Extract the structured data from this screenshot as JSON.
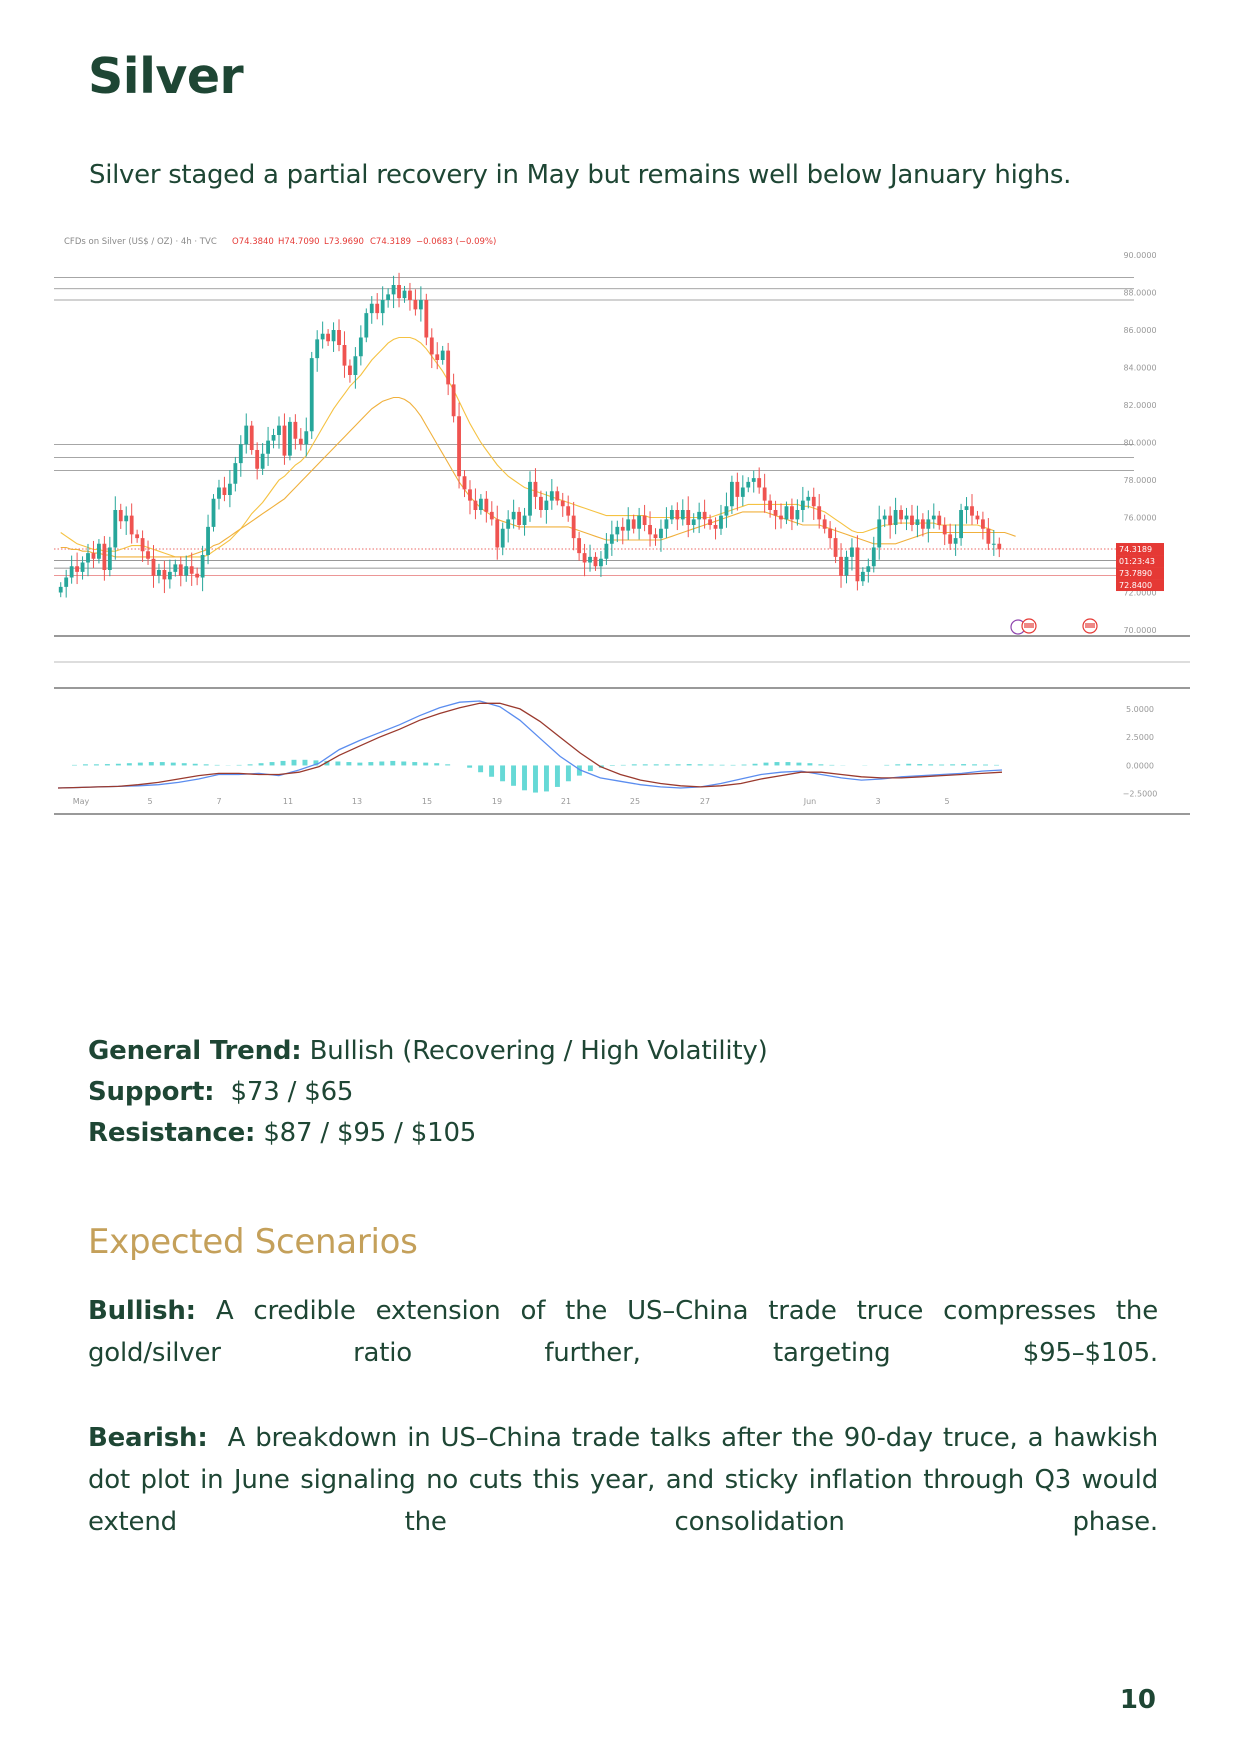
{
  "page": {
    "title": "Silver",
    "subtitle": "Silver staged a partial recovery in May but remains well below January highs.",
    "page_number": "10"
  },
  "summary": {
    "trend_label": "General Trend:",
    "trend_value": "Bullish (Recovering / High Volatility)",
    "support_label": "Support:",
    "support_value": "$73 / $65",
    "resistance_label": "Resistance:",
    "resistance_value": "$87 / $95 / $105"
  },
  "scenarios": {
    "heading": "Expected Scenarios",
    "bullish_label": "Bullish:",
    "bullish_text": "A credible extension of the US–China trade truce compresses the gold/silver ratio further, targeting $95–$105.",
    "bearish_label": "Bearish:",
    "bearish_text": "A breakdown in US–China trade talks after the 90-day truce, a hawkish dot plot in June signaling no cuts this year, and sticky inflation through Q3 would extend the consolidation phase."
  },
  "colors": {
    "text_green": "#1e4634",
    "accent_gold": "#c4a05a",
    "candle_up": "#26a69a",
    "candle_down": "#ef5350",
    "ma_fast": "#f5c242",
    "ma_slow": "#f0b03c",
    "macd_line": "#5b8def",
    "signal_line": "#9a3a2e",
    "histogram": "#66d9d6"
  },
  "chart_data": {
    "type": "candlestick",
    "header": {
      "symbol": "CFDs on Silver (US$ / OZ) · 4h · TVC",
      "open": "O74.3840",
      "high": "H74.7090",
      "low": "L73.9690",
      "close": "C74.3189",
      "change": "−0.0683 (−0.09%)"
    },
    "y_ticks": [
      "90.0000",
      "88.0000",
      "86.0000",
      "84.0000",
      "82.0000",
      "80.0000",
      "78.0000",
      "76.0000",
      "74.0000",
      "72.0000",
      "70.0000"
    ],
    "ylim": [
      70,
      90
    ],
    "x_ticks": [
      "May",
      "5",
      "7",
      "11",
      "13",
      "15",
      "19",
      "21",
      "25",
      "27",
      "Jun",
      "3",
      "5"
    ],
    "price_tags": [
      "74.3189",
      "01:23:43",
      "73.7890",
      "72.8400"
    ],
    "horizontal_levels": [
      88.8,
      88.2,
      87.6,
      79.9,
      79.2,
      78.5,
      73.7,
      73.3,
      72.9
    ],
    "current_price": 74.3189,
    "candle_closes": [
      72.3,
      72.8,
      73.4,
      73.1,
      73.6,
      74.1,
      73.8,
      74.6,
      73.2,
      74.4,
      76.4,
      75.8,
      76.1,
      75.1,
      74.9,
      74.2,
      73.8,
      72.9,
      73.2,
      72.7,
      73.1,
      73.5,
      72.9,
      73.4,
      73.0,
      72.8,
      74.0,
      75.5,
      77.0,
      77.6,
      77.2,
      77.8,
      78.9,
      79.9,
      80.9,
      79.6,
      78.6,
      79.4,
      80.1,
      80.4,
      80.9,
      79.3,
      81.1,
      80.2,
      79.9,
      80.6,
      84.5,
      85.5,
      85.8,
      85.4,
      86.0,
      85.2,
      84.1,
      83.6,
      84.6,
      85.6,
      86.9,
      87.4,
      86.9,
      87.6,
      87.9,
      88.4,
      87.7,
      88.1,
      87.6,
      87.1,
      87.6,
      85.6,
      84.7,
      84.4,
      84.9,
      83.1,
      81.4,
      78.2,
      77.5,
      76.9,
      76.4,
      77.0,
      76.3,
      75.9,
      74.4,
      75.4,
      75.9,
      76.3,
      75.6,
      76.1,
      77.9,
      77.1,
      76.4,
      76.9,
      77.4,
      76.9,
      76.6,
      76.1,
      74.9,
      74.1,
      73.6,
      73.9,
      73.4,
      73.8,
      74.6,
      75.1,
      75.5,
      75.3,
      75.9,
      75.4,
      76.1,
      75.6,
      75.1,
      74.9,
      75.4,
      75.9,
      76.4,
      75.9,
      76.4,
      75.6,
      75.9,
      76.3,
      75.9,
      75.6,
      75.4,
      76.1,
      76.6,
      77.9,
      77.1,
      77.6,
      77.9,
      78.1,
      77.6,
      76.9,
      76.4,
      76.1,
      75.9,
      76.6,
      75.9,
      76.4,
      76.9,
      77.1,
      76.6,
      75.9,
      75.4,
      74.9,
      73.9,
      72.9,
      73.9,
      74.4,
      72.6,
      73.1,
      73.4,
      74.4,
      75.9,
      76.1,
      75.6,
      76.4,
      75.9,
      76.1,
      75.6,
      75.9,
      75.4,
      75.9,
      76.1,
      75.6,
      75.1,
      74.6,
      74.9,
      76.4,
      76.6,
      76.1,
      75.9,
      75.4,
      74.6,
      74.6,
      74.3
    ],
    "ma_fast": [
      75.2,
      75.0,
      74.8,
      74.6,
      74.5,
      74.4,
      74.3,
      74.3,
      74.2,
      74.2,
      74.2,
      74.3,
      74.4,
      74.5,
      74.5,
      74.5,
      74.4,
      74.3,
      74.2,
      74.1,
      74.0,
      73.9,
      73.9,
      73.9,
      73.9,
      73.9,
      73.9,
      74.0,
      74.2,
      74.4,
      74.6,
      74.8,
      75.1,
      75.4,
      75.8,
      76.2,
      76.5,
      76.8,
      77.2,
      77.6,
      78.0,
      78.2,
      78.5,
      78.8,
      79.0,
      79.3,
      79.8,
      80.3,
      80.8,
      81.3,
      81.8,
      82.2,
      82.6,
      83.0,
      83.3,
      83.6,
      84.0,
      84.4,
      84.7,
      85.0,
      85.3,
      85.5,
      85.6,
      85.6,
      85.6,
      85.5,
      85.3,
      85.0,
      84.6,
      84.2,
      83.8,
      83.3,
      82.8,
      82.2,
      81.6,
      81.0,
      80.5,
      80.0,
      79.6,
      79.2,
      78.8,
      78.5,
      78.2,
      78.0,
      77.8,
      77.6,
      77.5,
      77.4,
      77.3,
      77.2,
      77.1,
      77.0,
      76.9,
      76.8,
      76.7,
      76.6,
      76.5,
      76.4,
      76.3,
      76.2,
      76.1,
      76.1,
      76.1,
      76.1,
      76.1,
      76.1,
      76.1,
      76.1,
      76.0,
      76.0,
      76.0,
      76.0,
      76.0,
      76.0,
      76.0,
      76.0,
      76.0,
      76.0,
      76.0,
      76.0,
      76.1,
      76.2,
      76.3,
      76.4,
      76.5,
      76.6,
      76.7,
      76.7,
      76.7,
      76.7,
      76.7,
      76.7,
      76.7,
      76.7,
      76.7,
      76.7,
      76.6,
      76.6,
      76.5,
      76.4,
      76.3,
      76.1,
      75.9,
      75.7,
      75.5,
      75.3,
      75.2,
      75.2,
      75.3,
      75.4,
      75.5,
      75.6,
      75.6,
      75.7,
      75.7,
      75.7,
      75.7,
      75.7,
      75.7,
      75.7,
      75.7,
      75.6,
      75.6,
      75.6,
      75.6,
      75.6,
      75.6,
      75.6,
      75.6,
      75.5,
      75.4,
      75.3
    ],
    "ma_slow": [
      74.4,
      74.4,
      74.3,
      74.3,
      74.2,
      74.2,
      74.1,
      74.1,
      74.0,
      74.0,
      73.9,
      73.9,
      73.9,
      73.9,
      73.9,
      73.9,
      73.9,
      73.9,
      73.9,
      73.9,
      73.9,
      73.9,
      73.9,
      73.9,
      74.0,
      74.1,
      74.2,
      74.3,
      74.5,
      74.6,
      74.8,
      75.0,
      75.2,
      75.4,
      75.6,
      75.8,
      76.0,
      76.2,
      76.4,
      76.6,
      76.8,
      77.0,
      77.3,
      77.6,
      77.9,
      78.2,
      78.5,
      78.8,
      79.1,
      79.4,
      79.7,
      80.0,
      80.3,
      80.6,
      80.9,
      81.2,
      81.5,
      81.8,
      82.0,
      82.2,
      82.3,
      82.4,
      82.4,
      82.3,
      82.1,
      81.8,
      81.4,
      80.9,
      80.4,
      79.9,
      79.4,
      78.9,
      78.4,
      77.9,
      77.5,
      77.1,
      76.8,
      76.5,
      76.3,
      76.1,
      75.9,
      75.8,
      75.7,
      75.6,
      75.5,
      75.5,
      75.5,
      75.5,
      75.5,
      75.5,
      75.5,
      75.5,
      75.5,
      75.5,
      75.4,
      75.3,
      75.2,
      75.1,
      75.0,
      74.9,
      74.8,
      74.8,
      74.8,
      74.8,
      74.8,
      74.8,
      74.8,
      74.8,
      74.8,
      74.8,
      74.8,
      74.9,
      75.0,
      75.1,
      75.2,
      75.3,
      75.4,
      75.5,
      75.6,
      75.7,
      75.8,
      75.9,
      76.0,
      76.1,
      76.2,
      76.3,
      76.3,
      76.3,
      76.3,
      76.3,
      76.2,
      76.1,
      76.0,
      75.9,
      75.8,
      75.7,
      75.6,
      75.6,
      75.6,
      75.6,
      75.5,
      75.4,
      75.3,
      75.2,
      75.1,
      75.0,
      74.9,
      74.8,
      74.7,
      74.6,
      74.6,
      74.6,
      74.6,
      74.6,
      74.7,
      74.8,
      74.9,
      75.0,
      75.1,
      75.2,
      75.2,
      75.2,
      75.2,
      75.2,
      75.2,
      75.2,
      75.2,
      75.2,
      75.2,
      75.2,
      75.2,
      75.2,
      75.2,
      75.2,
      75.1,
      75.0
    ],
    "macd": {
      "y_ticks": [
        "5.0000",
        "2.5000",
        "0.0000",
        "−2.5000"
      ],
      "ylim": [
        -3.5,
        6.5
      ],
      "macd": [
        -2.0,
        -1.95,
        -1.9,
        -1.85,
        -1.8,
        -1.7,
        -1.5,
        -1.2,
        -0.8,
        -0.8,
        -0.7,
        -0.9,
        -0.4,
        0.2,
        1.4,
        2.2,
        2.9,
        3.6,
        4.4,
        5.1,
        5.6,
        5.7,
        5.2,
        4.0,
        2.4,
        0.8,
        -0.4,
        -1.1,
        -1.4,
        -1.7,
        -1.9,
        -2.0,
        -1.9,
        -1.6,
        -1.2,
        -0.8,
        -0.6,
        -0.5,
        -0.8,
        -1.1,
        -1.3,
        -1.2,
        -1.0,
        -0.9,
        -0.8,
        -0.7,
        -0.5,
        -0.4
      ],
      "signal": [
        -2.0,
        -1.95,
        -1.9,
        -1.85,
        -1.7,
        -1.5,
        -1.2,
        -0.9,
        -0.7,
        -0.7,
        -0.8,
        -0.8,
        -0.6,
        -0.1,
        0.9,
        1.7,
        2.5,
        3.2,
        4.0,
        4.6,
        5.1,
        5.5,
        5.5,
        5.0,
        3.9,
        2.5,
        1.1,
        -0.1,
        -0.8,
        -1.3,
        -1.6,
        -1.8,
        -1.9,
        -1.8,
        -1.6,
        -1.2,
        -0.9,
        -0.6,
        -0.6,
        -0.8,
        -1.0,
        -1.1,
        -1.1,
        -1.0,
        -0.9,
        -0.8,
        -0.7,
        -0.6
      ],
      "histogram": [
        0.0,
        0.05,
        0.1,
        0.1,
        0.12,
        0.15,
        0.2,
        0.25,
        0.3,
        0.3,
        0.25,
        0.2,
        0.15,
        0.1,
        0.05,
        0.02,
        0.05,
        0.1,
        0.2,
        0.3,
        0.4,
        0.5,
        0.5,
        0.45,
        0.4,
        0.35,
        0.3,
        0.25,
        0.3,
        0.35,
        0.4,
        0.35,
        0.3,
        0.25,
        0.2,
        0.1,
        0.0,
        -0.2,
        -0.6,
        -1.0,
        -1.4,
        -1.8,
        -2.2,
        -2.4,
        -2.3,
        -1.9,
        -1.4,
        -0.9,
        -0.5,
        -0.2,
        -0.05,
        0.05,
        0.1,
        0.1,
        0.1,
        0.1,
        0.1,
        0.12,
        0.1,
        0.08,
        0.06,
        0.05,
        0.08,
        0.15,
        0.25,
        0.3,
        0.3,
        0.25,
        0.2,
        0.1,
        0.05,
        0.02,
        0.0,
        -0.02,
        0.0,
        0.05,
        0.1,
        0.15,
        0.12,
        0.1,
        0.08,
        0.1,
        0.12,
        0.1,
        0.08,
        0.05
      ]
    }
  }
}
